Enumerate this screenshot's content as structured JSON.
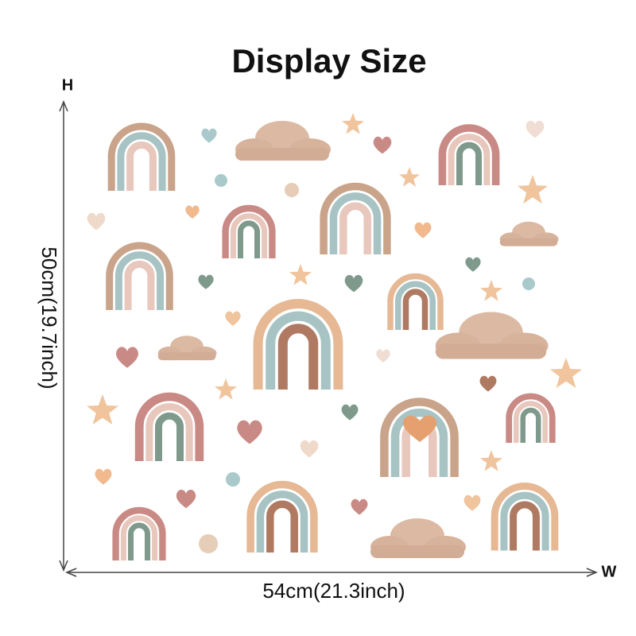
{
  "header": {
    "title": "Display Size"
  },
  "dimensions": {
    "height_axis": "H",
    "width_axis": "W",
    "height_label": "50cm(19.7inch)",
    "width_label": "54cm(21.3inch)"
  }
}
